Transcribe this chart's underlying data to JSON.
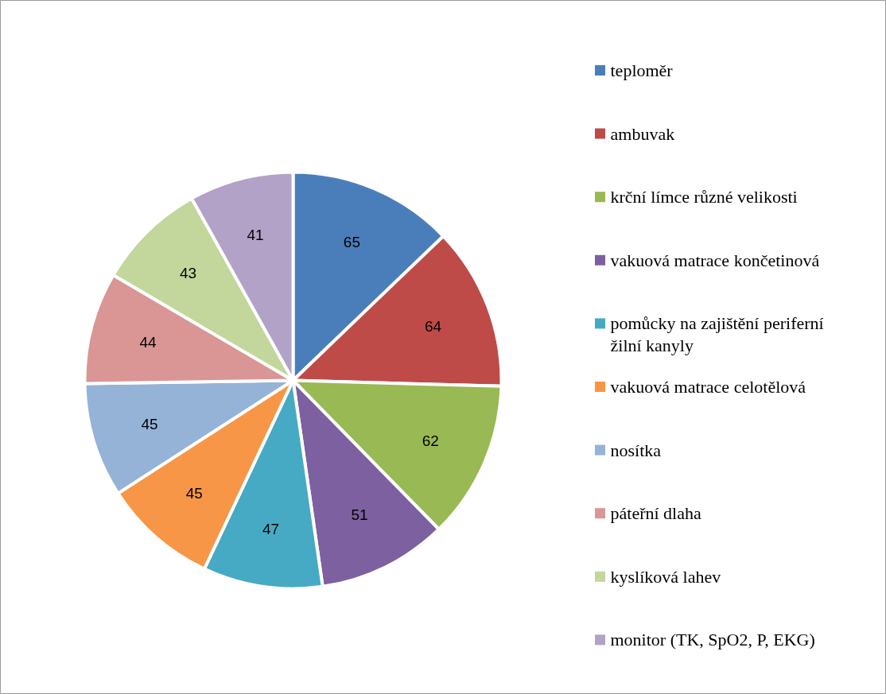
{
  "chart_data": {
    "type": "pie",
    "legend": "right",
    "data_labels": true,
    "categories": [
      "teploměr",
      "ambuvak",
      "krční límce různé velikosti",
      "vakuová matrace končetinová",
      "pomůcky na zajištění periferní žilní kanyly",
      "vakuová matrace celotělová",
      "nosítka",
      "páteřní dlaha",
      "kyslíková lahev",
      "monitor (TK, SpO2, P, EKG)"
    ],
    "values": [
      65,
      64,
      62,
      51,
      47,
      45,
      45,
      44,
      43,
      41
    ],
    "colors": [
      "#4a7ebb",
      "#be4b48",
      "#98b954",
      "#7d60a0",
      "#46aac5",
      "#f79646",
      "#95b3d7",
      "#d99694",
      "#c3d69b",
      "#b3a2c7"
    ]
  }
}
